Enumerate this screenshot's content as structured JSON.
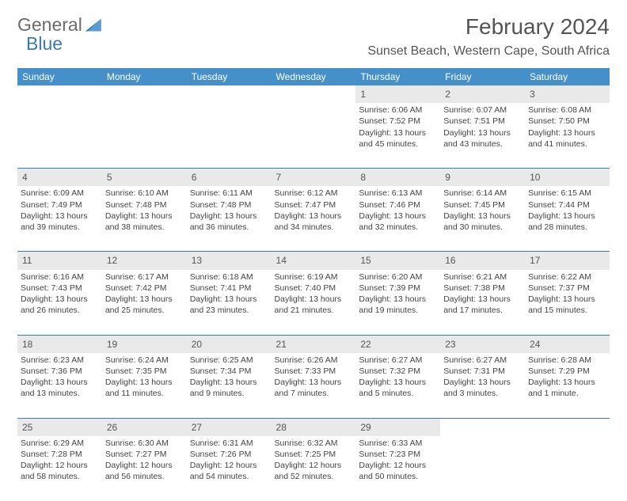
{
  "logo": {
    "part1": "General",
    "part2": "Blue"
  },
  "month_title": "February 2024",
  "location": "Sunset Beach, Western Cape, South Africa",
  "colors": {
    "header_bg": "#4590c9",
    "header_text": "#ffffff",
    "date_bg": "#e9e9e9",
    "divider": "#3a7ab8",
    "text": "#444444"
  },
  "day_names": [
    "Sunday",
    "Monday",
    "Tuesday",
    "Wednesday",
    "Thursday",
    "Friday",
    "Saturday"
  ],
  "weeks": [
    {
      "dates": [
        "",
        "",
        "",
        "",
        "1",
        "2",
        "3"
      ],
      "info": [
        "",
        "",
        "",
        "",
        "Sunrise: 6:06 AM\nSunset: 7:52 PM\nDaylight: 13 hours and 45 minutes.",
        "Sunrise: 6:07 AM\nSunset: 7:51 PM\nDaylight: 13 hours and 43 minutes.",
        "Sunrise: 6:08 AM\nSunset: 7:50 PM\nDaylight: 13 hours and 41 minutes."
      ]
    },
    {
      "dates": [
        "4",
        "5",
        "6",
        "7",
        "8",
        "9",
        "10"
      ],
      "info": [
        "Sunrise: 6:09 AM\nSunset: 7:49 PM\nDaylight: 13 hours and 39 minutes.",
        "Sunrise: 6:10 AM\nSunset: 7:48 PM\nDaylight: 13 hours and 38 minutes.",
        "Sunrise: 6:11 AM\nSunset: 7:48 PM\nDaylight: 13 hours and 36 minutes.",
        "Sunrise: 6:12 AM\nSunset: 7:47 PM\nDaylight: 13 hours and 34 minutes.",
        "Sunrise: 6:13 AM\nSunset: 7:46 PM\nDaylight: 13 hours and 32 minutes.",
        "Sunrise: 6:14 AM\nSunset: 7:45 PM\nDaylight: 13 hours and 30 minutes.",
        "Sunrise: 6:15 AM\nSunset: 7:44 PM\nDaylight: 13 hours and 28 minutes."
      ]
    },
    {
      "dates": [
        "11",
        "12",
        "13",
        "14",
        "15",
        "16",
        "17"
      ],
      "info": [
        "Sunrise: 6:16 AM\nSunset: 7:43 PM\nDaylight: 13 hours and 26 minutes.",
        "Sunrise: 6:17 AM\nSunset: 7:42 PM\nDaylight: 13 hours and 25 minutes.",
        "Sunrise: 6:18 AM\nSunset: 7:41 PM\nDaylight: 13 hours and 23 minutes.",
        "Sunrise: 6:19 AM\nSunset: 7:40 PM\nDaylight: 13 hours and 21 minutes.",
        "Sunrise: 6:20 AM\nSunset: 7:39 PM\nDaylight: 13 hours and 19 minutes.",
        "Sunrise: 6:21 AM\nSunset: 7:38 PM\nDaylight: 13 hours and 17 minutes.",
        "Sunrise: 6:22 AM\nSunset: 7:37 PM\nDaylight: 13 hours and 15 minutes."
      ]
    },
    {
      "dates": [
        "18",
        "19",
        "20",
        "21",
        "22",
        "23",
        "24"
      ],
      "info": [
        "Sunrise: 6:23 AM\nSunset: 7:36 PM\nDaylight: 13 hours and 13 minutes.",
        "Sunrise: 6:24 AM\nSunset: 7:35 PM\nDaylight: 13 hours and 11 minutes.",
        "Sunrise: 6:25 AM\nSunset: 7:34 PM\nDaylight: 13 hours and 9 minutes.",
        "Sunrise: 6:26 AM\nSunset: 7:33 PM\nDaylight: 13 hours and 7 minutes.",
        "Sunrise: 6:27 AM\nSunset: 7:32 PM\nDaylight: 13 hours and 5 minutes.",
        "Sunrise: 6:27 AM\nSunset: 7:31 PM\nDaylight: 13 hours and 3 minutes.",
        "Sunrise: 6:28 AM\nSunset: 7:29 PM\nDaylight: 13 hours and 1 minute."
      ]
    },
    {
      "dates": [
        "25",
        "26",
        "27",
        "28",
        "29",
        "",
        ""
      ],
      "info": [
        "Sunrise: 6:29 AM\nSunset: 7:28 PM\nDaylight: 12 hours and 58 minutes.",
        "Sunrise: 6:30 AM\nSunset: 7:27 PM\nDaylight: 12 hours and 56 minutes.",
        "Sunrise: 6:31 AM\nSunset: 7:26 PM\nDaylight: 12 hours and 54 minutes.",
        "Sunrise: 6:32 AM\nSunset: 7:25 PM\nDaylight: 12 hours and 52 minutes.",
        "Sunrise: 6:33 AM\nSunset: 7:23 PM\nDaylight: 12 hours and 50 minutes.",
        "",
        ""
      ]
    }
  ]
}
